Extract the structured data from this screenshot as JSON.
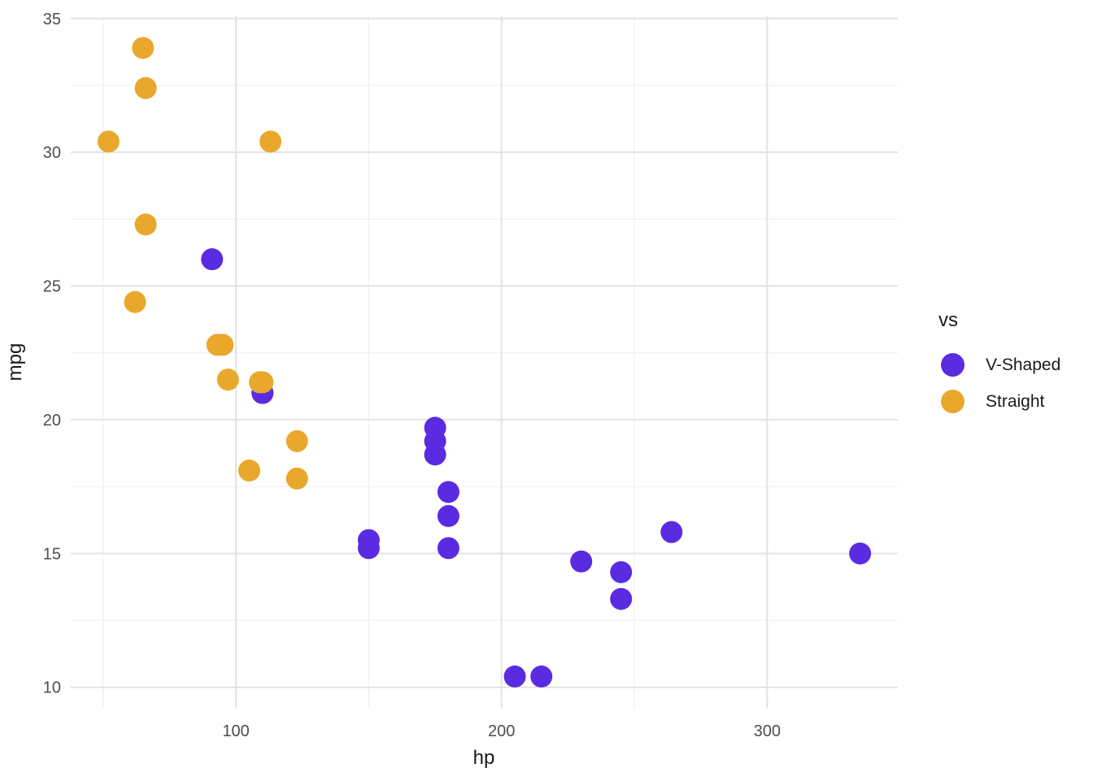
{
  "chart_data": {
    "type": "scatter",
    "xlabel": "hp",
    "ylabel": "mpg",
    "xlim": [
      37.8,
      349.2
    ],
    "ylim": [
      9.2,
      35.1
    ],
    "x_major_ticks": [
      100,
      200,
      300
    ],
    "x_minor_ticks": [
      50,
      150,
      250
    ],
    "y_major_ticks": [
      10,
      15,
      20,
      25,
      30,
      35
    ],
    "y_minor_ticks": [
      12.5,
      17.5,
      22.5,
      27.5,
      32.5
    ],
    "grid": true,
    "legend_position": "right",
    "legend_title": "vs",
    "point_radius": 13.5,
    "colors": {
      "v_shaped": "#5A2BE0",
      "straight": "#E9A82C",
      "grid_major": "#E3E3E3",
      "grid_minor": "#F0F0F0",
      "tick_text": "#4d4d4d",
      "title_text": "#1a1a1a"
    },
    "series": [
      {
        "name": "V-Shaped",
        "color": "#5A2BE0",
        "points": [
          [
            110,
            21.0
          ],
          [
            110,
            21.0
          ],
          [
            175,
            18.7
          ],
          [
            245,
            14.3
          ],
          [
            180,
            16.4
          ],
          [
            180,
            17.3
          ],
          [
            180,
            15.2
          ],
          [
            205,
            10.4
          ],
          [
            215,
            10.4
          ],
          [
            230,
            14.7
          ],
          [
            150,
            15.5
          ],
          [
            150,
            15.2
          ],
          [
            245,
            13.3
          ],
          [
            175,
            19.2
          ],
          [
            91,
            26.0
          ],
          [
            264,
            15.8
          ],
          [
            175,
            19.7
          ],
          [
            335,
            15.0
          ]
        ]
      },
      {
        "name": "Straight",
        "color": "#E9A82C",
        "points": [
          [
            93,
            22.8
          ],
          [
            110,
            21.4
          ],
          [
            105,
            18.1
          ],
          [
            62,
            24.4
          ],
          [
            95,
            22.8
          ],
          [
            123,
            19.2
          ],
          [
            123,
            17.8
          ],
          [
            66,
            32.4
          ],
          [
            52,
            30.4
          ],
          [
            65,
            33.9
          ],
          [
            97,
            21.5
          ],
          [
            66,
            27.3
          ],
          [
            113,
            30.4
          ],
          [
            109,
            21.4
          ]
        ]
      }
    ]
  }
}
